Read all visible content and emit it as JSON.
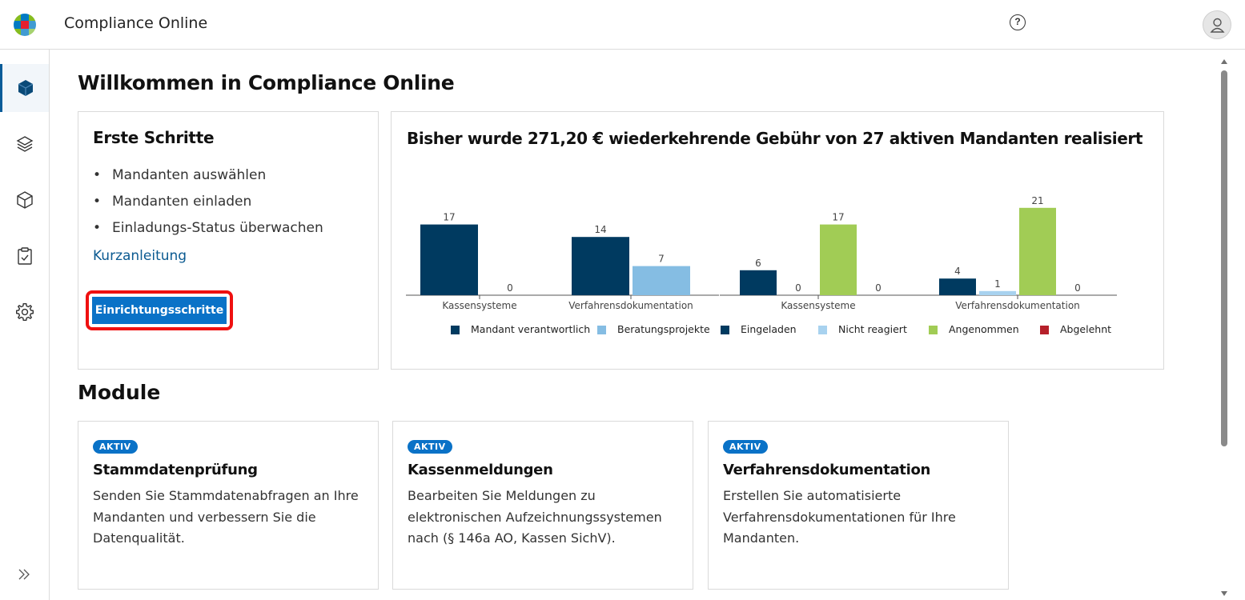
{
  "header": {
    "app_title": "Compliance Online",
    "help_icon": "help-circle-icon",
    "help_glyph": "?",
    "avatar_icon": "user-icon"
  },
  "sidebar": {
    "items": [
      {
        "icon": "cube-solid-icon",
        "active": true
      },
      {
        "icon": "layers-icon",
        "active": false
      },
      {
        "icon": "cube-outline-icon",
        "active": false
      },
      {
        "icon": "clipboard-check-icon",
        "active": false
      },
      {
        "icon": "gear-icon",
        "active": false
      }
    ],
    "expand_icon": "double-chevron-right-icon"
  },
  "page": {
    "title": "Willkommen in Compliance Online"
  },
  "first_steps": {
    "title": "Erste Schritte",
    "items": [
      "Mandanten auswählen",
      "Mandanten einladen",
      "Einladungs-Status überwachen"
    ],
    "link_label": "Kurzanleitung",
    "button_label": "Einrichtungsschritte"
  },
  "chart_data": {
    "type": "bar",
    "title": "Bisher wurde 271,20 € wiederkehrende Gebühr von 27 aktiven Mandanten realisiert",
    "groups": [
      {
        "categories": [
          "Kassensysteme",
          "Verfahrensdokumentation"
        ],
        "series": [
          {
            "name": "Mandant verantwortlich",
            "color": "#003a60",
            "values": [
              17,
              14
            ]
          },
          {
            "name": "Beratungsprojekte",
            "color": "#85bde3",
            "values": [
              0,
              7
            ]
          }
        ]
      },
      {
        "categories": [
          "Kassensysteme",
          "Verfahrensdokumentation"
        ],
        "series": [
          {
            "name": "Eingeladen",
            "color": "#003a60",
            "values": [
              6,
              4
            ]
          },
          {
            "name": "Nicht reagiert",
            "color": "#a8d2ef",
            "values": [
              0,
              1
            ]
          },
          {
            "name": "Angenommen",
            "color": "#a1cc55",
            "values": [
              17,
              21
            ]
          },
          {
            "name": "Abgelehnt",
            "color": "#b5202a",
            "values": [
              0,
              0
            ]
          }
        ]
      }
    ],
    "legend": [
      {
        "name": "Mandant verantwortlich",
        "color": "#003a60"
      },
      {
        "name": "Beratungsprojekte",
        "color": "#85bde3"
      },
      {
        "name": "Eingeladen",
        "color": "#003a60"
      },
      {
        "name": "Nicht reagiert",
        "color": "#a8d2ef"
      },
      {
        "name": "Angenommen",
        "color": "#a1cc55"
      },
      {
        "name": "Abgelehnt",
        "color": "#b5202a"
      }
    ],
    "legend_position": "bottom",
    "grid": false
  },
  "modules": {
    "title": "Module",
    "cards": [
      {
        "badge": "AKTIV",
        "title": "Stammdatenprüfung",
        "description": "Senden Sie Stammdatenabfragen an Ihre Mandanten und verbessern Sie die Datenqualität."
      },
      {
        "badge": "AKTIV",
        "title": "Kassenmeldungen",
        "description": "Bearbeiten Sie Meldungen zu elektronischen Aufzeichnungssystemen nach (§ 146a AO, Kassen SichV)."
      },
      {
        "badge": "AKTIV",
        "title": "Verfahrensdokumentation",
        "description": "Erstellen Sie automatisierte Verfahrensdokumentationen für Ihre Mandanten."
      }
    ]
  }
}
